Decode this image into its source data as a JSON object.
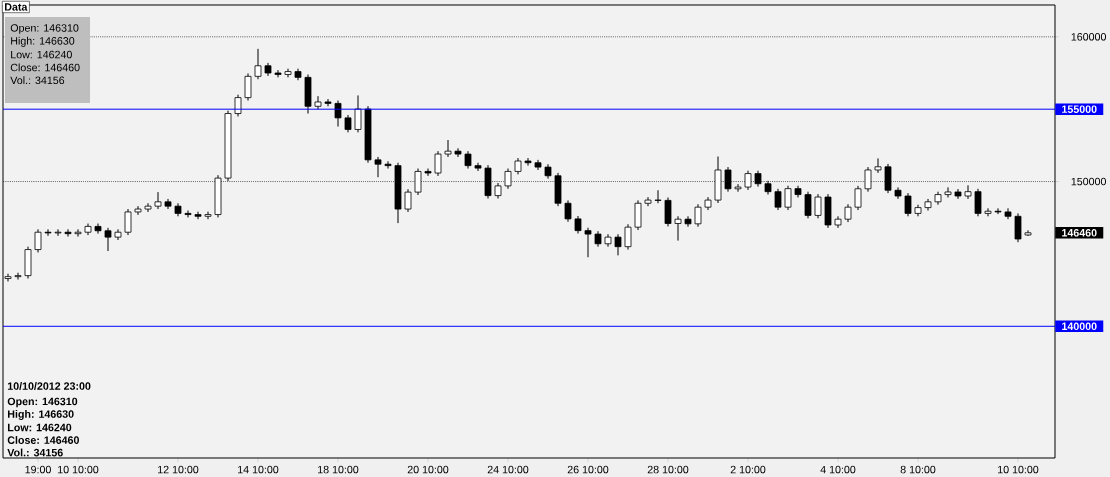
{
  "chart_data": {
    "type": "candlestick",
    "categories": [
      null,
      null,
      null,
      "19:00",
      null,
      null,
      null,
      "10 10:00",
      null,
      null,
      null,
      null,
      null,
      null,
      null,
      null,
      null,
      "12 10:00",
      null,
      null,
      null,
      null,
      null,
      null,
      null,
      "14 10:00",
      null,
      null,
      null,
      null,
      null,
      null,
      null,
      "18 10:00",
      null,
      null,
      null,
      null,
      null,
      null,
      null,
      null,
      "20 10:00",
      null,
      null,
      null,
      null,
      null,
      null,
      null,
      "24 10:00",
      null,
      null,
      null,
      null,
      null,
      null,
      null,
      "26 10:00",
      null,
      null,
      null,
      null,
      null,
      null,
      null,
      "28 10:00",
      null,
      null,
      null,
      null,
      null,
      null,
      null,
      "2 10:00",
      null,
      null,
      null,
      null,
      null,
      null,
      null,
      null,
      "4 10:00",
      null,
      null,
      null,
      null,
      null,
      null,
      null,
      "8 10:00",
      null,
      null,
      null,
      null,
      null,
      null,
      null,
      null,
      null,
      "10 10:00",
      null
    ],
    "ohlc": [
      [
        143300,
        143630,
        143100,
        143430
      ],
      [
        143430,
        143700,
        143230,
        143500
      ],
      [
        143500,
        145500,
        143300,
        145300
      ],
      [
        145300,
        146700,
        145100,
        146500
      ],
      [
        146500,
        146700,
        146250,
        146450
      ],
      [
        146450,
        146700,
        146250,
        146500
      ],
      [
        146500,
        146700,
        146200,
        146400
      ],
      [
        146400,
        146700,
        146200,
        146500
      ],
      [
        146500,
        147100,
        146300,
        146900
      ],
      [
        146900,
        147100,
        146400,
        146600
      ],
      [
        146600,
        146800,
        145200,
        146160
      ],
      [
        146160,
        146700,
        145960,
        146500
      ],
      [
        146500,
        148100,
        146300,
        147900
      ],
      [
        147900,
        148300,
        147700,
        148100
      ],
      [
        148100,
        148500,
        147900,
        148300
      ],
      [
        148300,
        149270,
        148100,
        148600
      ],
      [
        148600,
        148800,
        148100,
        148300
      ],
      [
        148300,
        148500,
        147600,
        147800
      ],
      [
        147800,
        148000,
        147520,
        147720
      ],
      [
        147720,
        147920,
        147400,
        147600
      ],
      [
        147600,
        147920,
        147400,
        147720
      ],
      [
        147720,
        150440,
        147520,
        150240
      ],
      [
        150240,
        154900,
        150040,
        154700
      ],
      [
        154700,
        156000,
        154500,
        155800
      ],
      [
        155800,
        157470,
        155600,
        157270
      ],
      [
        157270,
        159170,
        157070,
        158000
      ],
      [
        158000,
        158200,
        157300,
        157500
      ],
      [
        157500,
        157700,
        157200,
        157400
      ],
      [
        157400,
        157800,
        157200,
        157600
      ],
      [
        157600,
        157800,
        157000,
        157200
      ],
      [
        157200,
        157400,
        154700,
        155200
      ],
      [
        155200,
        155900,
        155000,
        155500
      ],
      [
        155500,
        155700,
        155200,
        155400
      ],
      [
        155400,
        155600,
        153800,
        154400
      ],
      [
        154400,
        154600,
        153400,
        153600
      ],
      [
        153600,
        155950,
        153400,
        155010
      ],
      [
        155010,
        155210,
        151300,
        151500
      ],
      [
        151500,
        151700,
        150300,
        151200
      ],
      [
        151200,
        151400,
        150900,
        151100
      ],
      [
        151100,
        151300,
        147130,
        148100
      ],
      [
        148100,
        149470,
        147900,
        149270
      ],
      [
        149270,
        150900,
        149070,
        150700
      ],
      [
        150700,
        150900,
        150390,
        150590
      ],
      [
        150590,
        152100,
        150390,
        151900
      ],
      [
        151900,
        152870,
        151700,
        152100
      ],
      [
        152100,
        152300,
        151700,
        151900
      ],
      [
        151900,
        152100,
        150900,
        151100
      ],
      [
        151100,
        151300,
        150730,
        150930
      ],
      [
        150930,
        151130,
        148830,
        149030
      ],
      [
        149030,
        149900,
        148830,
        149700
      ],
      [
        149700,
        150900,
        149500,
        150700
      ],
      [
        150700,
        151620,
        150500,
        151420
      ],
      [
        151420,
        151620,
        151100,
        151300
      ],
      [
        151300,
        151500,
        150800,
        151000
      ],
      [
        151000,
        151200,
        150200,
        150400
      ],
      [
        150400,
        150600,
        148300,
        148500
      ],
      [
        148500,
        148700,
        147220,
        147420
      ],
      [
        147420,
        147620,
        146410,
        146610
      ],
      [
        146610,
        146810,
        144770,
        146370
      ],
      [
        146370,
        146570,
        145500,
        145700
      ],
      [
        145700,
        146360,
        145500,
        146160
      ],
      [
        146160,
        146360,
        144900,
        145500
      ],
      [
        145500,
        147050,
        145300,
        146850
      ],
      [
        146850,
        148700,
        146650,
        148500
      ],
      [
        148500,
        148920,
        148300,
        148720
      ],
      [
        148720,
        149400,
        148500,
        148700
      ],
      [
        148700,
        148900,
        146900,
        147100
      ],
      [
        147100,
        147600,
        145920,
        147400
      ],
      [
        147400,
        147600,
        146880,
        147080
      ],
      [
        147080,
        148430,
        146880,
        148230
      ],
      [
        148230,
        148920,
        148030,
        148720
      ],
      [
        148720,
        151730,
        148520,
        150800
      ],
      [
        150800,
        151000,
        149300,
        149500
      ],
      [
        149500,
        149820,
        149300,
        149620
      ],
      [
        149620,
        150750,
        149420,
        150550
      ],
      [
        150550,
        150750,
        149650,
        149850
      ],
      [
        149850,
        150050,
        149100,
        149300
      ],
      [
        149300,
        149500,
        148030,
        148230
      ],
      [
        148230,
        149710,
        148030,
        149510
      ],
      [
        149510,
        149710,
        148900,
        149100
      ],
      [
        149100,
        149300,
        147460,
        147660
      ],
      [
        147660,
        149130,
        147460,
        148930
      ],
      [
        148930,
        149130,
        146800,
        147000
      ],
      [
        147000,
        147600,
        146800,
        147400
      ],
      [
        147400,
        148430,
        147200,
        148230
      ],
      [
        148230,
        149700,
        148030,
        149500
      ],
      [
        149500,
        151000,
        149300,
        150800
      ],
      [
        150800,
        151600,
        150600,
        151020
      ],
      [
        151020,
        151220,
        149200,
        149400
      ],
      [
        149400,
        149600,
        148800,
        149000
      ],
      [
        149000,
        149200,
        147600,
        147800
      ],
      [
        147800,
        148400,
        147600,
        148200
      ],
      [
        148200,
        148800,
        148000,
        148600
      ],
      [
        148600,
        149300,
        148400,
        149100
      ],
      [
        149100,
        149600,
        148900,
        149280
      ],
      [
        149280,
        149480,
        148800,
        149000
      ],
      [
        149000,
        149740,
        148800,
        149300
      ],
      [
        149300,
        149500,
        147600,
        147800
      ],
      [
        147800,
        148150,
        147600,
        147950
      ],
      [
        147950,
        148150,
        147750,
        147900
      ],
      [
        147900,
        148150,
        147400,
        147600
      ],
      [
        147600,
        147800,
        145810,
        146030
      ],
      [
        146310,
        146630,
        146240,
        146460
      ]
    ],
    "color": "#000000",
    "ylim": [
      130900,
      162200
    ],
    "yticks": [
      150000,
      160000
    ],
    "grid": "y",
    "ref_lines": [
      {
        "axis": "y",
        "value": 155000,
        "label": "155000",
        "color": "#0000ff"
      },
      {
        "axis": "y",
        "value": 140000,
        "label": "140000",
        "color": "#0000ff"
      }
    ],
    "annotations": [
      "Data",
      "Open: 146310",
      "High: 146630",
      "Low: 146240",
      "Close: 146460",
      "Vol.: 34156",
      "10/10/2012 23:00",
      "Open: 146310",
      "High: 146630",
      "Low: 146240",
      "Close: 146460",
      "Vol.: 34156",
      "146460"
    ]
  }
}
